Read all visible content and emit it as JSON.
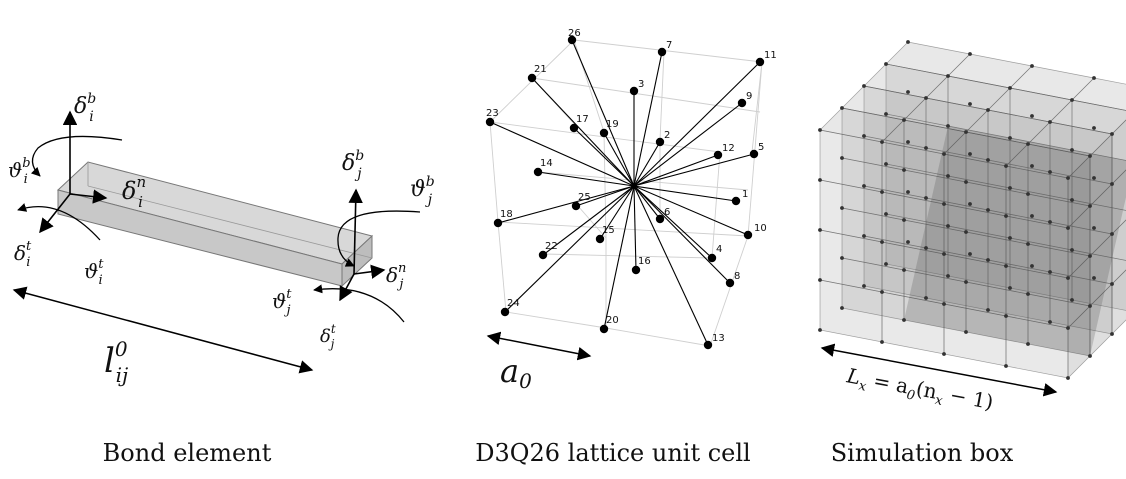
{
  "panels": {
    "bond": {
      "caption": "Bond element",
      "symbols": {
        "delta_i_b": "δ",
        "delta_i_b_sub": "i",
        "delta_i_b_sup": "b",
        "theta_i_b": "ϑ",
        "theta_i_b_sub": "i",
        "theta_i_b_sup": "b",
        "delta_i_n": "δ",
        "delta_i_n_sub": "i",
        "delta_i_n_sup": "n",
        "delta_i_t": "δ",
        "delta_i_t_sub": "i",
        "delta_i_t_sup": "t",
        "theta_i_t": "ϑ",
        "theta_i_t_sub": "i",
        "theta_i_t_sup": "t",
        "delta_j_b": "δ",
        "delta_j_b_sub": "j",
        "delta_j_b_sup": "b",
        "theta_j_b": "ϑ",
        "theta_j_b_sub": "j",
        "theta_j_b_sup": "b",
        "delta_j_n": "δ",
        "delta_j_n_sub": "j",
        "delta_j_n_sup": "n",
        "theta_j_t": "ϑ",
        "theta_j_t_sub": "j",
        "theta_j_t_sup": "t",
        "delta_j_t": "δ",
        "delta_j_t_sub": "j",
        "delta_j_t_sup": "t",
        "length": "l",
        "length_sub": "ij",
        "length_sup": "0"
      }
    },
    "lattice": {
      "caption": "D3Q26 lattice unit cell",
      "spacing_label": "a",
      "spacing_sub": "0",
      "node_labels": [
        "1",
        "2",
        "3",
        "4",
        "5",
        "6",
        "7",
        "8",
        "9",
        "10",
        "11",
        "12",
        "13",
        "14",
        "15",
        "16",
        "17",
        "18",
        "19",
        "20",
        "21",
        "22",
        "23",
        "24",
        "25",
        "26"
      ]
    },
    "box": {
      "caption": "Simulation box",
      "formula": "L",
      "formula_sub": "x",
      "formula_rest": " = a",
      "formula_sub2": "0",
      "formula_rest2": "(n",
      "formula_sub3": "x",
      "formula_rest3": " − 1)"
    }
  }
}
